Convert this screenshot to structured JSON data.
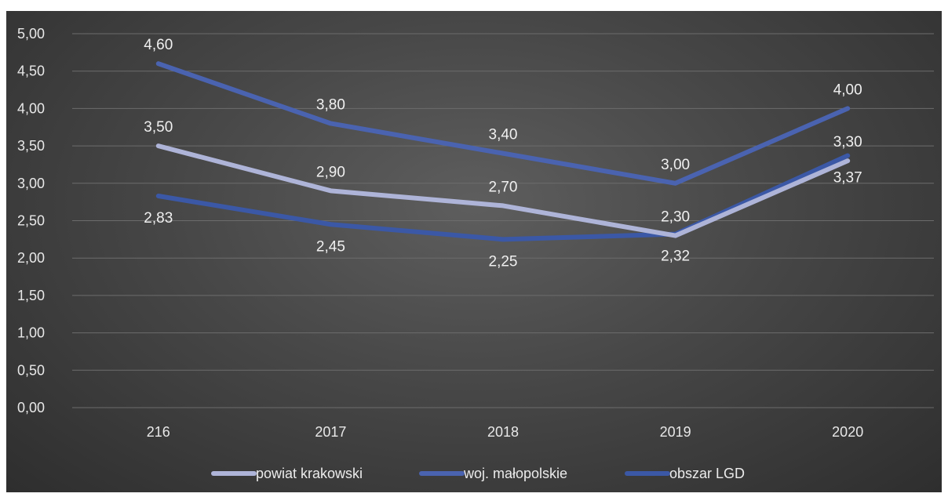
{
  "chart_data": {
    "type": "line",
    "categories": [
      "216",
      "2017",
      "2018",
      "2019",
      "2020"
    ],
    "ylim": [
      0,
      5
    ],
    "yticks": [
      "0,00",
      "0,50",
      "1,00",
      "1,50",
      "2,00",
      "2,50",
      "3,00",
      "3,50",
      "4,00",
      "4,50",
      "5,00"
    ],
    "grid": true,
    "legend_position": "bottom",
    "series": [
      {
        "name": "powiat krakowski",
        "values": [
          3.5,
          2.9,
          2.7,
          2.3,
          3.3
        ],
        "labels": [
          "3,50",
          "2,90",
          "2,70",
          "2,30",
          "3,30"
        ],
        "color": "#aeb4d8"
      },
      {
        "name": "woj. małopolskie",
        "values": [
          4.6,
          3.8,
          3.4,
          3.0,
          4.0
        ],
        "labels": [
          "4,60",
          "3,80",
          "3,40",
          "3,00",
          "4,00"
        ],
        "color": "#4a63b0"
      },
      {
        "name": "obszar LGD",
        "values": [
          2.83,
          2.45,
          2.25,
          2.32,
          3.37
        ],
        "labels": [
          "2,83",
          "2,45",
          "2,25",
          "2,32",
          "3,37"
        ],
        "color": "#3b58a6"
      }
    ]
  }
}
